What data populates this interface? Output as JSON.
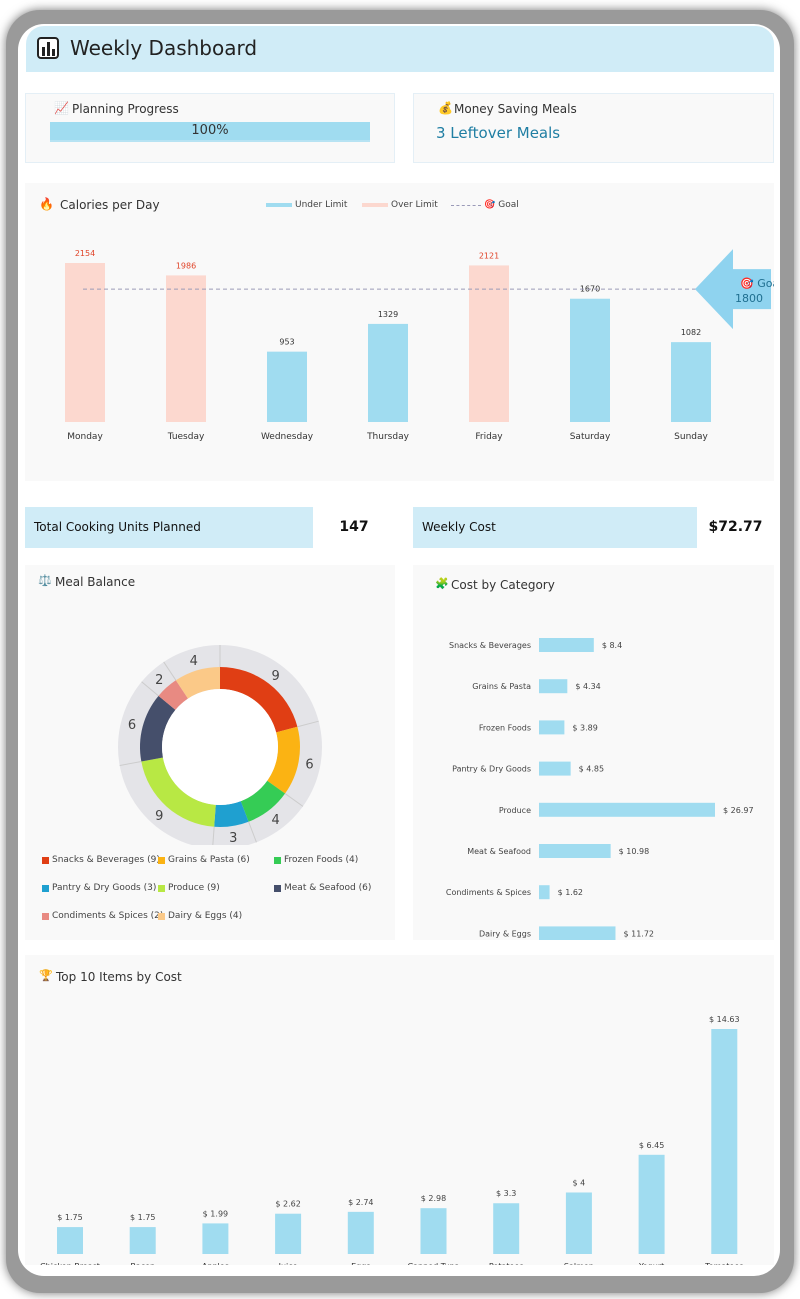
{
  "header": {
    "title": "Weekly Dashboard",
    "icon": "bar-chart-icon"
  },
  "planning": {
    "title": "Planning Progress",
    "value": "100%",
    "progress": 1.0
  },
  "money": {
    "title": "Money Saving Meals",
    "value": "3 Leftover Meals"
  },
  "kpis": {
    "cooking_label": "Total Cooking Units Planned",
    "cooking_value": "147",
    "cost_label": "Weekly Cost",
    "cost_value": "$72.77"
  },
  "colors": {
    "under": "#a0dcf0",
    "over": "#fcd8cf",
    "over_label": "#e0452a",
    "goal_line": "#9a9ab8"
  },
  "chart_data": [
    {
      "type": "bar",
      "title": "Calories per Day",
      "legend": [
        "Under Limit",
        "Over Limit",
        "Goal"
      ],
      "goal": 1800,
      "goal_label": "Goal",
      "goal_value": "1800",
      "categories": [
        "Monday",
        "Tuesday",
        "Wednesday",
        "Thursday",
        "Friday",
        "Saturday",
        "Sunday"
      ],
      "values": [
        2154,
        1986,
        953,
        1329,
        2121,
        1670,
        1082
      ]
    },
    {
      "type": "pie",
      "title": "Meal Balance",
      "categories": [
        "Snacks & Beverages",
        "Grains & Pasta",
        "Frozen Foods",
        "Pantry & Dry Goods",
        "Produce",
        "Meat & Seafood",
        "Condiments & Spices",
        "Dairy & Eggs"
      ],
      "legend": [
        "Snacks & Beverages (9)",
        "Grains & Pasta (6)",
        "Frozen Foods (4)",
        "Pantry & Dry Goods (3)",
        "Produce (9)",
        "Meat & Seafood (6)",
        "Condiments & Spices (2)",
        "Dairy & Eggs (4)"
      ],
      "values": [
        9,
        6,
        4,
        3,
        9,
        6,
        2,
        4
      ],
      "colors": [
        "#e03e14",
        "#fbb313",
        "#35cc55",
        "#1fa0d0",
        "#b8e844",
        "#454f6b",
        "#e88a82",
        "#fbc988"
      ]
    },
    {
      "type": "bar",
      "orientation": "horizontal",
      "title": "Cost by Category",
      "categories": [
        "Snacks & Beverages",
        "Grains & Pasta",
        "Frozen Foods",
        "Pantry & Dry Goods",
        "Produce",
        "Meat & Seafood",
        "Condiments & Spices",
        "Dairy & Eggs"
      ],
      "values": [
        8.4,
        4.34,
        3.89,
        4.85,
        26.97,
        10.98,
        1.62,
        11.72
      ],
      "labels": [
        "$ 8.4",
        "$ 4.34",
        "$ 3.89",
        "$ 4.85",
        "$ 26.97",
        "$ 10.98",
        "$ 1.62",
        "$ 11.72"
      ]
    },
    {
      "type": "bar",
      "title": "Top 10 Items by Cost",
      "categories": [
        "Chicken Breast",
        "Bacon",
        "Apples",
        "Juice",
        "Eggs",
        "Canned Tuna",
        "Potatoes",
        "Salmon",
        "Yogurt",
        "Tomatoes"
      ],
      "values": [
        1.75,
        1.75,
        1.99,
        2.62,
        2.74,
        2.98,
        3.3,
        4,
        6.45,
        14.63
      ],
      "labels": [
        "$ 1.75",
        "$ 1.75",
        "$ 1.99",
        "$ 2.62",
        "$ 2.74",
        "$ 2.98",
        "$ 3.3",
        "$ 4",
        "$ 6.45",
        "$ 14.63"
      ]
    }
  ]
}
